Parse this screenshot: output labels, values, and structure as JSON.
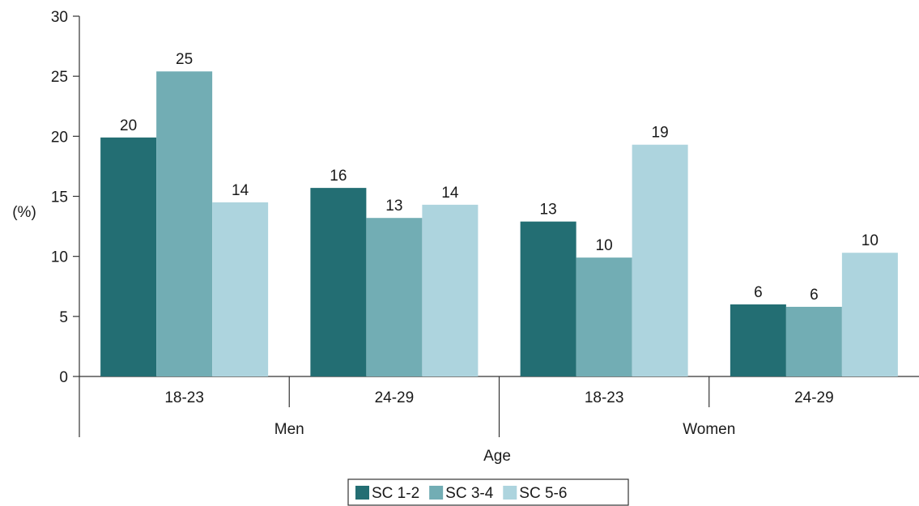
{
  "chart_data": {
    "type": "bar",
    "ylabel": "(%)",
    "xlabel": "Age",
    "ylim": [
      0,
      30
    ],
    "yticks": [
      0,
      5,
      10,
      15,
      20,
      25,
      30
    ],
    "groups": [
      "Men",
      "Women"
    ],
    "categories": [
      "18-23",
      "24-29",
      "18-23",
      "24-29"
    ],
    "category_groups": [
      "Men",
      "Men",
      "Women",
      "Women"
    ],
    "series": [
      {
        "name": "SC 1-2",
        "color": "#236e73",
        "values": [
          19.9,
          15.7,
          12.9,
          6.0
        ],
        "labels": [
          "20",
          "16",
          "13",
          "6"
        ]
      },
      {
        "name": "SC 3-4",
        "color": "#72adb4",
        "values": [
          25.4,
          13.2,
          9.9,
          5.8
        ],
        "labels": [
          "25",
          "13",
          "10",
          "6"
        ]
      },
      {
        "name": "SC 5-6",
        "color": "#add4de",
        "values": [
          14.5,
          14.3,
          19.3,
          10.3
        ],
        "labels": [
          "14",
          "14",
          "19",
          "10"
        ]
      }
    ],
    "legend_position": "bottom-center",
    "grid": false
  }
}
